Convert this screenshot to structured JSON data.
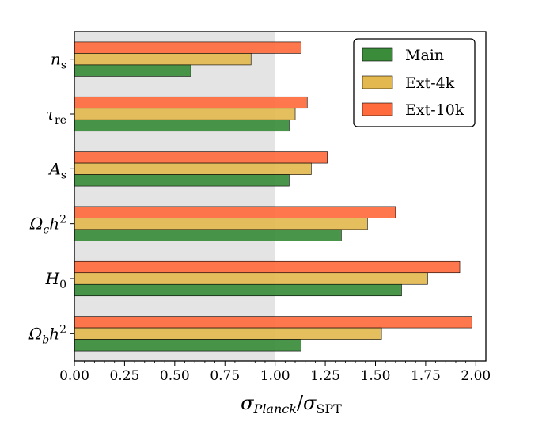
{
  "chart_data": {
    "type": "bar",
    "orientation": "horizontal",
    "categories": [
      "n_s",
      "τ_re",
      "A_s",
      "Ω_c h^2",
      "H_0",
      "Ω_b h^2"
    ],
    "category_labels": [
      {
        "main": "n",
        "sub": "s",
        "sup": ""
      },
      {
        "main": "τ",
        "sub": "re",
        "sup": ""
      },
      {
        "main": "A",
        "sub": "s",
        "sup": ""
      },
      {
        "main": "Ω",
        "sub": "c",
        "mid": "h",
        "sup": "2"
      },
      {
        "main": "H",
        "sub": "0",
        "sup": ""
      },
      {
        "main": "Ω",
        "sub": "b",
        "mid": "h",
        "sup": "2"
      }
    ],
    "series": [
      {
        "name": "Main",
        "color": "#3a8c3a",
        "values": [
          0.58,
          1.07,
          1.07,
          1.33,
          1.63,
          1.13
        ]
      },
      {
        "name": "Ext-4k",
        "color": "#e3b94f",
        "values": [
          0.88,
          1.1,
          1.18,
          1.46,
          1.76,
          1.53
        ]
      },
      {
        "name": "Ext-10k",
        "color": "#ff6b3d",
        "values": [
          1.13,
          1.16,
          1.26,
          1.6,
          1.92,
          1.98
        ]
      }
    ],
    "xlim": [
      0.0,
      2.05
    ],
    "xticks": [
      "0.00",
      "0.25",
      "0.50",
      "0.75",
      "1.00",
      "1.25",
      "1.50",
      "1.75",
      "2.00"
    ],
    "xtick_values": [
      0.0,
      0.25,
      0.5,
      0.75,
      1.0,
      1.25,
      1.5,
      1.75,
      2.0
    ],
    "xlabel": {
      "sigma": "σ",
      "sub1": "Planck",
      "slash": "/",
      "sigma2": "σ",
      "sub2": "SPT"
    },
    "shaded_region": {
      "from": 0.0,
      "to": 1.0,
      "color": "#e4e4e4"
    },
    "legend_position": "top-right",
    "grid": false
  }
}
